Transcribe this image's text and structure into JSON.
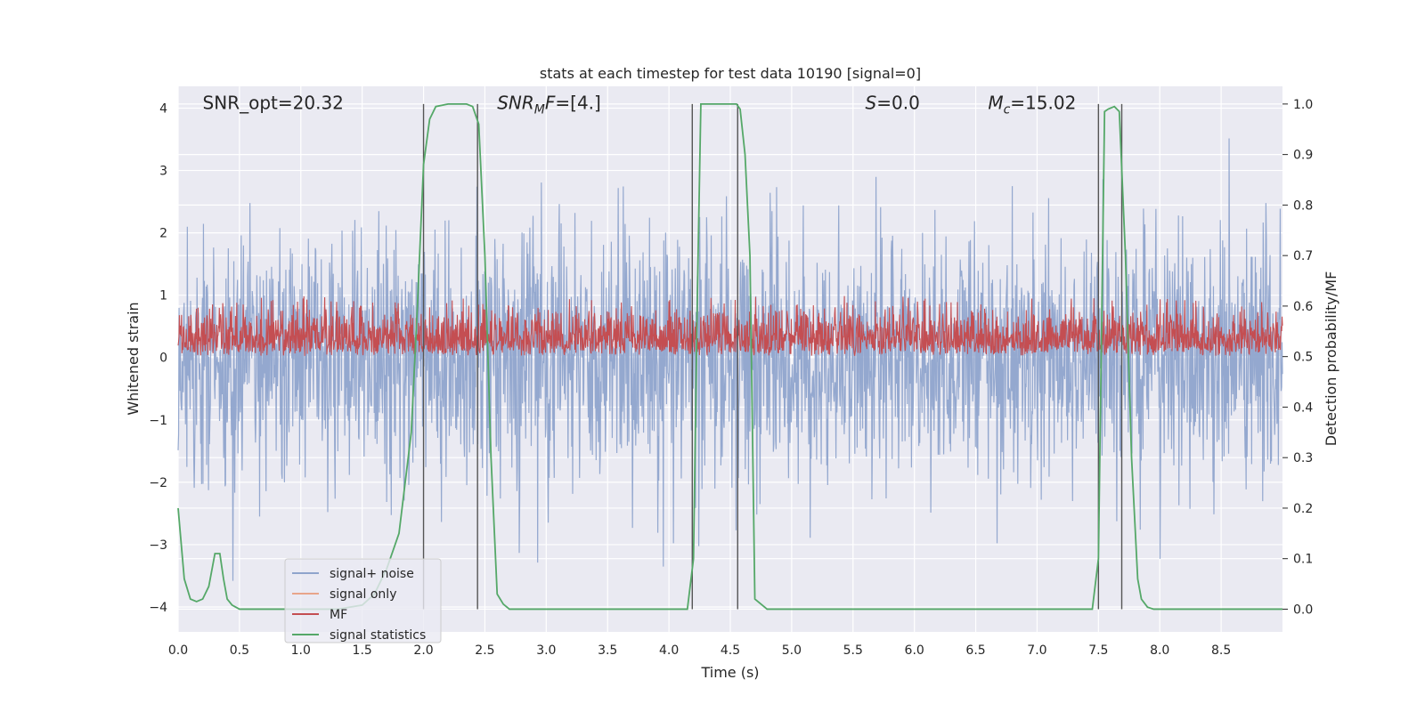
{
  "chart_data": {
    "type": "line",
    "title": "stats at each timestep for test data 10190 [signal=0]",
    "xlabel": "Time (s)",
    "ylabel": "Whitened strain",
    "y2label": "Detection probability/MF",
    "xlim": [
      0.0,
      9.0
    ],
    "ylim": [
      -4.4,
      4.35
    ],
    "y2lim": [
      -0.045,
      1.035
    ],
    "xticks": [
      "0.0",
      "0.5",
      "1.0",
      "1.5",
      "2.0",
      "2.5",
      "3.0",
      "3.5",
      "4.0",
      "4.5",
      "5.0",
      "5.5",
      "6.0",
      "6.5",
      "7.0",
      "7.5",
      "8.0",
      "8.5"
    ],
    "yticks": [
      "4",
      "3",
      "2",
      "1",
      "0",
      "−1",
      "−2",
      "−3",
      "−4"
    ],
    "y2ticks": [
      "1.0",
      "0.9",
      "0.8",
      "0.7",
      "0.6",
      "0.5",
      "0.4",
      "0.3",
      "0.2",
      "0.1",
      "0.0"
    ],
    "grid": true,
    "legend_position": "lower-left",
    "annotations": [
      {
        "text": "SNR_opt=20.32",
        "x": 0.2,
        "y": 4.0
      },
      {
        "text": "=[4.]",
        "prefix": "SNR",
        "sub": "M",
        "suffix": "F",
        "x": 2.6,
        "y": 4.0
      },
      {
        "text": "=0.0",
        "prefix": "S",
        "x": 5.6,
        "y": 4.0
      },
      {
        "text": "=15.02",
        "prefix": "M",
        "sub": "c",
        "x": 6.6,
        "y": 4.0
      }
    ],
    "series": [
      {
        "name": "signal+ noise",
        "color": "#8fa4cc",
        "kind": "noise",
        "amplitude": 1.0
      },
      {
        "name": "signal only",
        "color": "#e8a58a",
        "kind": "flat"
      },
      {
        "name": "MF",
        "color": "#c44e52",
        "kind": "mf"
      },
      {
        "name": "signal statistics",
        "color": "#55a868",
        "kind": "stats",
        "x": [
          0.0,
          0.05,
          0.1,
          0.15,
          0.2,
          0.25,
          0.3,
          0.34,
          0.37,
          0.4,
          0.44,
          0.5,
          0.7,
          1.0,
          1.3,
          1.5,
          1.6,
          1.7,
          1.8,
          1.9,
          1.95,
          2.0,
          2.05,
          2.1,
          2.2,
          2.35,
          2.4,
          2.45,
          2.5,
          2.55,
          2.6,
          2.65,
          2.7,
          3.0,
          3.5,
          4.0,
          4.15,
          4.2,
          4.23,
          4.26,
          4.3,
          4.55,
          4.58,
          4.62,
          4.66,
          4.7,
          4.8,
          5.5,
          6.5,
          7.0,
          7.45,
          7.5,
          7.55,
          7.58,
          7.63,
          7.67,
          7.72,
          7.77,
          7.82,
          7.85,
          7.9,
          7.95,
          8.0,
          8.5,
          9.0
        ],
        "y": [
          0.2,
          0.06,
          0.02,
          0.015,
          0.02,
          0.045,
          0.11,
          0.11,
          0.06,
          0.02,
          0.008,
          0.0,
          0.0,
          0.0,
          0.0,
          0.008,
          0.03,
          0.08,
          0.15,
          0.35,
          0.6,
          0.88,
          0.97,
          0.995,
          1.0,
          1.0,
          0.995,
          0.96,
          0.7,
          0.3,
          0.03,
          0.01,
          0.0,
          0.0,
          0.0,
          0.0,
          0.0,
          0.1,
          0.6,
          1.0,
          1.0,
          1.0,
          0.99,
          0.9,
          0.7,
          0.02,
          0.0,
          0.0,
          0.0,
          0.0,
          0.0,
          0.1,
          0.985,
          0.99,
          0.995,
          0.985,
          0.7,
          0.3,
          0.06,
          0.02,
          0.004,
          0.0,
          0.0,
          0.0,
          0.0
        ]
      }
    ],
    "vlines_prob": [
      2.0,
      2.44,
      4.19,
      4.56,
      7.5,
      7.69
    ]
  }
}
